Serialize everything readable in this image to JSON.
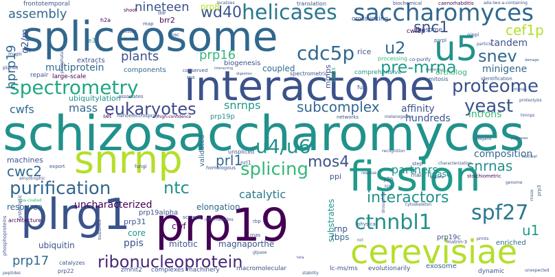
{
  "title": "",
  "palette": {
    "dark_purple": "#440154",
    "indigo": "#3b528b",
    "blue": "#31688e",
    "teal": "#21918c",
    "green": "#35b779",
    "lime": "#b5de2b",
    "yellow": "#c8e020"
  },
  "words": [
    {
      "text": "schizosaccharomyces",
      "color": "#21918c",
      "size": 70,
      "vertical": false
    },
    {
      "text": "interactome",
      "color": "#3b528b",
      "size": 60,
      "vertical": false
    },
    {
      "text": "spliceosome",
      "color": "#31688e",
      "size": 60,
      "vertical": false
    },
    {
      "text": "prp19",
      "color": "#440154",
      "size": 66,
      "vertical": false
    },
    {
      "text": "plrg1",
      "color": "#3b528b",
      "size": 62,
      "vertical": false
    },
    {
      "text": "fission",
      "color": "#1f9a8a",
      "size": 60,
      "vertical": false
    },
    {
      "text": "snrnp",
      "color": "#b5de2b",
      "size": 56,
      "vertical": false
    },
    {
      "text": "cerevisiae",
      "color": "#b5de2b",
      "size": 48,
      "vertical": false
    },
    {
      "text": "u5",
      "color": "#21918c",
      "size": 50,
      "vertical": false
    },
    {
      "text": "saccharomyces",
      "color": "#31688e",
      "size": 34,
      "vertical": false
    },
    {
      "text": "helicases",
      "color": "#2a788e",
      "size": 30,
      "vertical": false
    },
    {
      "text": "spectrometry",
      "color": "#21a685",
      "size": 28,
      "vertical": false
    },
    {
      "text": "proteome",
      "color": "#3b528b",
      "size": 26,
      "vertical": false
    },
    {
      "text": "purification",
      "color": "#31688e",
      "size": 26,
      "vertical": false
    },
    {
      "text": "ribonucleoprotein",
      "color": "#482878",
      "size": 24,
      "vertical": false
    },
    {
      "text": "ctnnbl1",
      "color": "#21918c",
      "size": 30,
      "vertical": false
    },
    {
      "text": "spf27",
      "color": "#2a788e",
      "size": 30,
      "vertical": false
    },
    {
      "text": "splicing",
      "color": "#35b779",
      "size": 26,
      "vertical": false
    },
    {
      "text": "u4/u6",
      "color": "#21918c",
      "size": 28,
      "vertical": false
    },
    {
      "text": "eukaryotes",
      "color": "#3e4989",
      "size": 24,
      "vertical": false
    },
    {
      "text": "cdc5p",
      "color": "#31688e",
      "size": 28,
      "vertical": false
    },
    {
      "text": "yeast",
      "color": "#3b528b",
      "size": 26,
      "vertical": false
    },
    {
      "text": "pre-mrna",
      "color": "#1f9a8a",
      "size": 24,
      "vertical": false
    },
    {
      "text": "interactors",
      "color": "#21918c",
      "size": 22,
      "vertical": false
    },
    {
      "text": "snev",
      "color": "#31688e",
      "size": 24,
      "vertical": false
    },
    {
      "text": "snc1",
      "color": "#3b528b",
      "size": 22,
      "vertical": false
    },
    {
      "text": "u2",
      "color": "#31688e",
      "size": 24,
      "vertical": false
    },
    {
      "text": "ntc",
      "color": "#21918c",
      "size": 24,
      "vertical": false
    },
    {
      "text": "mos4",
      "color": "#3b528b",
      "size": 22,
      "vertical": false
    },
    {
      "text": "wd40",
      "color": "#3b528b",
      "size": 22,
      "vertical": false
    },
    {
      "text": "cef1p",
      "color": "#b5de2b",
      "size": 20,
      "vertical": false
    },
    {
      "text": "subcomplex",
      "color": "#31688e",
      "size": 20,
      "vertical": false
    },
    {
      "text": "snrnas",
      "color": "#21918c",
      "size": 20,
      "vertical": false
    },
    {
      "text": "cwc2",
      "color": "#31688e",
      "size": 20,
      "vertical": false
    },
    {
      "text": "prl1",
      "color": "#31688e",
      "size": 20,
      "vertical": false
    },
    {
      "text": "u1",
      "color": "#1f9a8a",
      "size": 20,
      "vertical": false
    },
    {
      "text": "prp17",
      "color": "#31688e",
      "size": 18,
      "vertical": false
    },
    {
      "text": "assembly",
      "color": "#31688e",
      "size": 18,
      "vertical": false
    },
    {
      "text": "plants",
      "color": "#3b528b",
      "size": 18,
      "vertical": false
    },
    {
      "text": "nineteen",
      "color": "#3b528b",
      "size": 18,
      "vertical": false
    },
    {
      "text": "prp16",
      "color": "#35b779",
      "size": 18,
      "vertical": false
    },
    {
      "text": "multiprotein",
      "color": "#31688e",
      "size": 14,
      "vertical": false
    },
    {
      "text": "uncharacterized",
      "color": "#440154",
      "size": 14,
      "vertical": false
    },
    {
      "text": "snrnps",
      "color": "#1f9a8a",
      "size": 16,
      "vertical": false
    },
    {
      "text": "mass",
      "color": "#31688e",
      "size": 16,
      "vertical": false
    },
    {
      "text": "cwfs",
      "color": "#31688e",
      "size": 16,
      "vertical": false
    },
    {
      "text": "catalytic",
      "color": "#2a788e",
      "size": 16,
      "vertical": false
    },
    {
      "text": "partners",
      "color": "#21918c",
      "size": 16,
      "vertical": false
    },
    {
      "text": "composition",
      "color": "#31688e",
      "size": 14,
      "vertical": false
    },
    {
      "text": "affinity",
      "color": "#3b528b",
      "size": 14,
      "vertical": false
    },
    {
      "text": "introns",
      "color": "#35b779",
      "size": 14,
      "vertical": false
    },
    {
      "text": "tandem",
      "color": "#3b528b",
      "size": 14,
      "vertical": false
    },
    {
      "text": "minigene",
      "color": "#31688e",
      "size": 14,
      "vertical": false
    },
    {
      "text": "hundreds",
      "color": "#3b528b",
      "size": 14,
      "vertical": false
    },
    {
      "text": "coupled",
      "color": "#31688e",
      "size": 12,
      "vertical": false
    },
    {
      "text": "elongation",
      "color": "#31688e",
      "size": 12,
      "vertical": false
    },
    {
      "text": "ubiquitin",
      "color": "#3b528b",
      "size": 12,
      "vertical": false
    },
    {
      "text": "resource",
      "color": "#31688e",
      "size": 12,
      "vertical": false
    },
    {
      "text": "machines",
      "color": "#3b528b",
      "size": 11,
      "vertical": false
    },
    {
      "text": "ubiquitylation",
      "color": "#21918c",
      "size": 11,
      "vertical": false
    },
    {
      "text": "mitotic",
      "color": "#3b528b",
      "size": 12,
      "vertical": false
    },
    {
      "text": "magnaporthe",
      "color": "#3b528b",
      "size": 12,
      "vertical": false
    },
    {
      "text": "ppis",
      "color": "#3b528b",
      "size": 14,
      "vertical": false
    },
    {
      "text": "core",
      "color": "#21918c",
      "size": 12,
      "vertical": false
    },
    {
      "text": "prp31",
      "color": "#3b528b",
      "size": 11,
      "vertical": false
    },
    {
      "text": "cwf",
      "color": "#440154",
      "size": 12,
      "vertical": false
    },
    {
      "text": "substrates",
      "color": "#21918c",
      "size": 12,
      "vertical": true
    },
    {
      "text": "hprp19",
      "color": "#31688e",
      "size": 18,
      "vertical": true
    },
    {
      "text": "g2/m",
      "color": "#3b528b",
      "size": 14,
      "vertical": true
    },
    {
      "text": "rbps",
      "color": "#31688e",
      "size": 12,
      "vertical": false
    },
    {
      "text": "rnp",
      "color": "#3b528b",
      "size": 12,
      "vertical": false
    },
    {
      "text": "ppi",
      "color": "#3b528b",
      "size": 11,
      "vertical": false
    },
    {
      "text": "ortholog",
      "color": "#35b779",
      "size": 11,
      "vertical": false
    },
    {
      "text": "exosome",
      "color": "#31688e",
      "size": 10,
      "vertical": false
    },
    {
      "text": "enriched",
      "color": "#31688e",
      "size": 10,
      "vertical": false
    },
    {
      "text": "prp19c",
      "color": "#3b528b",
      "size": 10,
      "vertical": false
    },
    {
      "text": "prp8",
      "color": "#b5de2b",
      "size": 12,
      "vertical": false
    },
    {
      "text": "brr2",
      "color": "#440154",
      "size": 11,
      "vertical": false
    },
    {
      "text": "rice",
      "color": "#3b528b",
      "size": 11,
      "vertical": false
    },
    {
      "text": "biogenesis",
      "color": "#3b528b",
      "size": 10,
      "vertical": false
    },
    {
      "text": "components",
      "color": "#31688e",
      "size": 10,
      "vertical": false
    },
    {
      "text": "extracts",
      "color": "#3b528b",
      "size": 10,
      "vertical": false
    },
    {
      "text": "repair",
      "color": "#3b528b",
      "size": 9,
      "vertical": false
    },
    {
      "text": "large-scale",
      "color": "#440154",
      "size": 9,
      "vertical": false
    },
    {
      "text": "prp19p",
      "color": "#21918c",
      "size": 10,
      "vertical": false
    },
    {
      "text": "validated",
      "color": "#31688e",
      "size": 10,
      "vertical": true
    },
    {
      "text": "ligase",
      "color": "#21918c",
      "size": 12,
      "vertical": false
    },
    {
      "text": "mrnps",
      "color": "#3b528b",
      "size": 11,
      "vertical": true
    },
    {
      "text": "cwcs",
      "color": "#35b779",
      "size": 9,
      "vertical": true
    },
    {
      "text": "prp19alpha",
      "color": "#3b528b",
      "size": 10,
      "vertical": false
    },
    {
      "text": "architecture",
      "color": "#440154",
      "size": 8,
      "vertical": false
    },
    {
      "text": "zmhit2",
      "color": "#3b528b",
      "size": 9,
      "vertical": false
    },
    {
      "text": "complexes",
      "color": "#3b528b",
      "size": 9,
      "vertical": false
    },
    {
      "text": "machinery",
      "color": "#3b528b",
      "size": 9,
      "vertical": false
    },
    {
      "text": "macromolecular",
      "color": "#3b528b",
      "size": 9,
      "vertical": false
    },
    {
      "text": "lc-ms/ms",
      "color": "#3b528b",
      "size": 9,
      "vertical": false
    },
    {
      "text": "evolutionarily",
      "color": "#3b528b",
      "size": 9,
      "vertical": false
    },
    {
      "text": "dynamic",
      "color": "#3b528b",
      "size": 9,
      "vertical": false
    },
    {
      "text": "catalyzes",
      "color": "#3b528b",
      "size": 8,
      "vertical": false
    },
    {
      "text": "prp22",
      "color": "#3b528b",
      "size": 8,
      "vertical": false
    },
    {
      "text": "cwf8p",
      "color": "#440154",
      "size": 9,
      "vertical": false
    },
    {
      "text": "ribosome",
      "color": "#3b528b",
      "size": 9,
      "vertical": false
    },
    {
      "text": "processing",
      "color": "#35b779",
      "size": 8,
      "vertical": false
    },
    {
      "text": "comprehensive",
      "color": "#21918c",
      "size": 9,
      "vertical": false
    },
    {
      "text": "spectrometric",
      "color": "#3b528b",
      "size": 8,
      "vertical": false
    },
    {
      "text": "crosslinking",
      "color": "#3b528b",
      "size": 9,
      "vertical": false
    },
    {
      "text": "translation",
      "color": "#3b528b",
      "size": 8,
      "vertical": false
    },
    {
      "text": "biochemical",
      "color": "#3b528b",
      "size": 7,
      "vertical": false
    },
    {
      "text": "caenorhabditis",
      "color": "#440154",
      "size": 7,
      "vertical": false
    },
    {
      "text": "ada-two-a-containing",
      "color": "#3b528b",
      "size": 6,
      "vertical": false
    },
    {
      "text": "frontotemporal",
      "color": "#3b528b",
      "size": 9,
      "vertical": false
    },
    {
      "text": "mitosis",
      "color": "#3b528b",
      "size": 8,
      "vertical": false
    },
    {
      "text": "identification",
      "color": "#3b528b",
      "size": 7,
      "vertical": false
    },
    {
      "text": "co-purify",
      "color": "#3b528b",
      "size": 7,
      "vertical": false
    },
    {
      "text": "mrnas",
      "color": "#3b528b",
      "size": 6,
      "vertical": false
    },
    {
      "text": "proteolysis",
      "color": "#3b528b",
      "size": 6,
      "vertical": false
    },
    {
      "text": "fus",
      "color": "#3b528b",
      "size": 8,
      "vertical": false
    },
    {
      "text": "networks",
      "color": "#3b528b",
      "size": 7,
      "vertical": false
    },
    {
      "text": "melanogaster",
      "color": "#3b528b",
      "size": 6,
      "vertical": false
    },
    {
      "text": "hmnps",
      "color": "#3b528b",
      "size": 6,
      "vertical": false
    },
    {
      "text": "high-confidence",
      "color": "#440154",
      "size": 6,
      "vertical": false
    },
    {
      "text": "nanoelectrospray",
      "color": "#3b528b",
      "size": 7,
      "vertical": false
    },
    {
      "text": "associates",
      "color": "#3b528b",
      "size": 7,
      "vertical": false
    },
    {
      "text": "set",
      "color": "#440154",
      "size": 8,
      "vertical": false
    },
    {
      "text": "unspliced",
      "color": "#3b528b",
      "size": 8,
      "vertical": false
    },
    {
      "text": "nrl1",
      "color": "#3b528b",
      "size": 8,
      "vertical": false
    },
    {
      "text": "homologous",
      "color": "#3b528b",
      "size": 7,
      "vertical": false
    },
    {
      "text": "intermediates",
      "color": "#3b528b",
      "size": 6,
      "vertical": false
    },
    {
      "text": "screens",
      "color": "#3b528b",
      "size": 7,
      "vertical": false
    },
    {
      "text": "export",
      "color": "#3b528b",
      "size": 7,
      "vertical": false
    },
    {
      "text": "fungi",
      "color": "#3b528b",
      "size": 7,
      "vertical": false
    },
    {
      "text": "amyotrophic",
      "color": "#3b528b",
      "size": 6,
      "vertical": false
    },
    {
      "text": "rpa-coated",
      "color": "#35b779",
      "size": 6,
      "vertical": false
    },
    {
      "text": "systematic",
      "color": "#3b528b",
      "size": 7,
      "vertical": true
    },
    {
      "text": "phosphoproteins",
      "color": "#3b528b",
      "size": 7,
      "vertical": true
    },
    {
      "text": "recognition",
      "color": "#3b528b",
      "size": 6,
      "vertical": false
    },
    {
      "text": "step",
      "color": "#3b528b",
      "size": 7,
      "vertical": false
    },
    {
      "text": "characterization",
      "color": "#3b528b",
      "size": 6,
      "vertical": false
    },
    {
      "text": "ensure",
      "color": "#3b528b",
      "size": 6,
      "vertical": false
    },
    {
      "text": "stoichiometric",
      "color": "#440154",
      "size": 7,
      "vertical": false
    },
    {
      "text": "rnai",
      "color": "#3b528b",
      "size": 8,
      "vertical": false
    },
    {
      "text": "y2h",
      "color": "#3b528b",
      "size": 8,
      "vertical": false
    },
    {
      "text": "residue",
      "color": "#3b528b",
      "size": 6,
      "vertical": false
    },
    {
      "text": "hits",
      "color": "#3b528b",
      "size": 6,
      "vertical": false
    },
    {
      "text": "genome",
      "color": "#3b528b",
      "size": 6,
      "vertical": false
    },
    {
      "text": "nuclear",
      "color": "#3b528b",
      "size": 6,
      "vertical": false
    },
    {
      "text": "elegans",
      "color": "#3b528b",
      "size": 6,
      "vertical": false
    },
    {
      "text": "proteases",
      "color": "#3b528b",
      "size": 5,
      "vertical": false
    },
    {
      "text": "cytoskeleton",
      "color": "#3b528b",
      "size": 6,
      "vertical": false
    },
    {
      "text": "physical",
      "color": "#3b528b",
      "size": 7,
      "vertical": false
    },
    {
      "text": "matrin-3",
      "color": "#3b528b",
      "size": 7,
      "vertical": false
    },
    {
      "text": "prmts",
      "color": "#3b528b",
      "size": 6,
      "vertical": false
    },
    {
      "text": "subunits",
      "color": "#3b528b",
      "size": 7,
      "vertical": true
    },
    {
      "text": "peptides",
      "color": "#3b528b",
      "size": 6,
      "vertical": false
    },
    {
      "text": "stability",
      "color": "#3b528b",
      "size": 6,
      "vertical": false
    },
    {
      "text": "unexpected",
      "color": "#3b528b",
      "size": 6,
      "vertical": false
    },
    {
      "text": "prp3",
      "color": "#3b528b",
      "size": 7,
      "vertical": true
    },
    {
      "text": "rnase",
      "color": "#3b528b",
      "size": 6,
      "vertical": true
    },
    {
      "text": "rbp",
      "color": "#3b528b",
      "size": 7,
      "vertical": false
    },
    {
      "text": "gtpase",
      "color": "#3b528b",
      "size": 6,
      "vertical": false
    },
    {
      "text": "rnas",
      "color": "#3b528b",
      "size": 7,
      "vertical": false
    },
    {
      "text": "h2a",
      "color": "#440154",
      "size": 8,
      "vertical": false
    },
    {
      "text": "shoot",
      "color": "#440154",
      "size": 7,
      "vertical": false
    },
    {
      "text": "ddr",
      "color": "#3b528b",
      "size": 7,
      "vertical": false
    },
    {
      "text": "map",
      "color": "#3b528b",
      "size": 7,
      "vertical": false
    },
    {
      "text": "mac",
      "color": "#3b528b",
      "size": 7,
      "vertical": false
    },
    {
      "text": "e3",
      "color": "#21918c",
      "size": 9,
      "vertical": false
    },
    {
      "text": "rnapii",
      "color": "#3b528b",
      "size": 7,
      "vertical": false
    },
    {
      "text": "planta",
      "color": "#3b528b",
      "size": 7,
      "vertical": false
    },
    {
      "text": "phosphatase",
      "color": "#3b528b",
      "size": 6,
      "vertical": true
    },
    {
      "text": "limited",
      "color": "#3b528b",
      "size": 6,
      "vertical": false
    },
    {
      "text": "nippl",
      "color": "#3b528b",
      "size": 7,
      "vertical": false
    },
    {
      "text": "parpl",
      "color": "#3b528b",
      "size": 7,
      "vertical": false
    },
    {
      "text": "particle",
      "color": "#3b528b",
      "size": 6,
      "vertical": false
    },
    {
      "text": "damage",
      "color": "#3b528b",
      "size": 5,
      "vertical": false
    },
    {
      "text": "numerous",
      "color": "#3b528b",
      "size": 5,
      "vertical": false
    },
    {
      "text": "digestion",
      "color": "#3b528b",
      "size": 5,
      "vertical": false
    },
    {
      "text": "interacting",
      "color": "#3b528b",
      "size": 5,
      "vertical": false
    },
    {
      "text": "conserved",
      "color": "#3b528b",
      "size": 7,
      "vertical": false
    },
    {
      "text": "rna",
      "color": "#3b528b",
      "size": 7,
      "vertical": false
    },
    {
      "text": "localizes",
      "color": "#3b528b",
      "size": 6,
      "vertical": false
    },
    {
      "text": "drosophila",
      "color": "#3b528b",
      "size": 6,
      "vertical": true
    },
    {
      "text": "ncl",
      "color": "#3b528b",
      "size": 6,
      "vertical": false
    },
    {
      "text": "hela",
      "color": "#3b528b",
      "size": 5,
      "vertical": false
    }
  ]
}
